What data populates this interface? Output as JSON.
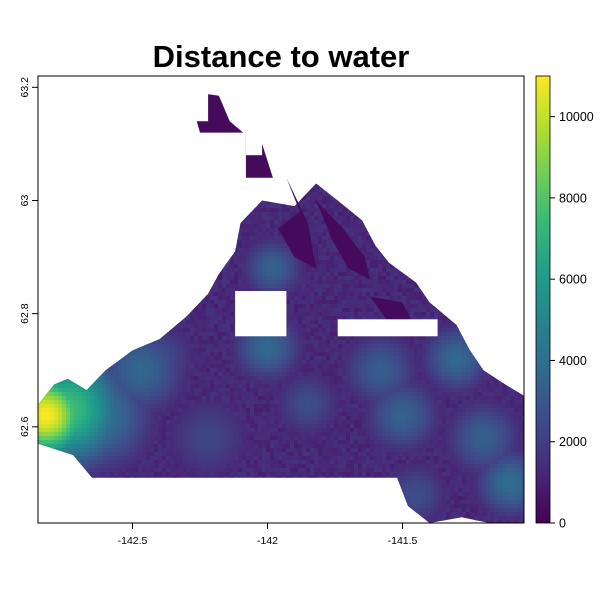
{
  "chart_data": {
    "type": "heatmap",
    "title": "Distance to water",
    "xlabel": "",
    "ylabel": "",
    "xlim": [
      -142.85,
      -141.05
    ],
    "ylim": [
      62.43,
      63.22
    ],
    "x_ticks": [
      {
        "value": -142.5,
        "label": "-142.5"
      },
      {
        "value": -142.0,
        "label": "-142"
      },
      {
        "value": -141.5,
        "label": "-141.5"
      }
    ],
    "y_ticks": [
      {
        "value": 62.6,
        "label": "62.6"
      },
      {
        "value": 62.8,
        "label": "62.8"
      },
      {
        "value": 63.0,
        "label": "63"
      },
      {
        "value": 63.2,
        "label": "63.2"
      }
    ],
    "legend": {
      "position": "right",
      "min": 0,
      "max": 11000,
      "ticks": [
        {
          "value": 0,
          "label": "0"
        },
        {
          "value": 2000,
          "label": "2000"
        },
        {
          "value": 4000,
          "label": "4000"
        },
        {
          "value": 6000,
          "label": "6000"
        },
        {
          "value": 8000,
          "label": "8000"
        },
        {
          "value": 10000,
          "label": "10000"
        }
      ]
    },
    "colormap": "viridis",
    "colors": [
      "#440154",
      "#482878",
      "#3e4989",
      "#31688e",
      "#26828e",
      "#1f9e89",
      "#35b779",
      "#6ece58",
      "#b5de2b",
      "#fde725"
    ],
    "grid": false,
    "region_outline": [
      [
        -142.85,
        62.64
      ],
      [
        -142.79,
        62.675
      ],
      [
        -142.74,
        62.685
      ],
      [
        -142.67,
        62.665
      ],
      [
        -142.6,
        62.7
      ],
      [
        -142.5,
        62.735
      ],
      [
        -142.4,
        62.755
      ],
      [
        -142.3,
        62.795
      ],
      [
        -142.22,
        62.835
      ],
      [
        -142.18,
        62.87
      ],
      [
        -142.12,
        62.91
      ],
      [
        -142.1,
        62.96
      ],
      [
        -142.02,
        63.0
      ],
      [
        -141.9,
        62.99
      ],
      [
        -141.82,
        63.03
      ],
      [
        -141.74,
        63.0
      ],
      [
        -141.65,
        62.965
      ],
      [
        -141.6,
        62.92
      ],
      [
        -141.55,
        62.89
      ],
      [
        -141.45,
        62.855
      ],
      [
        -141.4,
        62.82
      ],
      [
        -141.3,
        62.78
      ],
      [
        -141.25,
        62.735
      ],
      [
        -141.2,
        62.7
      ],
      [
        -141.12,
        62.675
      ],
      [
        -141.05,
        62.655
      ],
      [
        -141.05,
        62.43
      ],
      [
        -141.18,
        62.43
      ],
      [
        -141.28,
        62.44
      ],
      [
        -141.4,
        62.43
      ],
      [
        -141.48,
        62.46
      ],
      [
        -141.52,
        62.51
      ],
      [
        -142.65,
        62.51
      ],
      [
        -142.72,
        62.55
      ],
      [
        -142.85,
        62.57
      ]
    ],
    "north_patches": [
      [
        [
          -142.28,
          63.17
        ],
        [
          -142.25,
          63.19
        ],
        [
          -142.18,
          63.185
        ],
        [
          -142.14,
          63.14
        ],
        [
          -142.09,
          63.12
        ],
        [
          -142.25,
          63.12
        ]
      ],
      [
        [
          -142.08,
          63.12
        ],
        [
          -142.02,
          63.1
        ],
        [
          -141.98,
          63.04
        ],
        [
          -142.08,
          63.04
        ]
      ],
      [
        [
          -141.93,
          63.04
        ],
        [
          -141.88,
          62.98
        ],
        [
          -141.96,
          62.95
        ],
        [
          -141.9,
          62.9
        ],
        [
          -141.82,
          62.88
        ],
        [
          -141.85,
          62.96
        ]
      ],
      [
        [
          -141.82,
          63.0
        ],
        [
          -141.72,
          62.95
        ],
        [
          -141.64,
          62.9
        ],
        [
          -141.62,
          62.86
        ],
        [
          -141.7,
          62.88
        ],
        [
          -141.76,
          62.93
        ]
      ],
      [
        [
          -141.62,
          62.83
        ],
        [
          -141.5,
          62.82
        ],
        [
          -141.46,
          62.78
        ],
        [
          -141.56,
          62.79
        ]
      ]
    ],
    "nodata_blocks": [
      {
        "x": [
          -142.12,
          -141.93
        ],
        "y": [
          62.76,
          62.84
        ]
      },
      {
        "x": [
          -141.74,
          -141.37
        ],
        "y": [
          62.76,
          62.79
        ]
      },
      {
        "x": [
          -142.3,
          -142.22
        ],
        "y": [
          63.14,
          63.2
        ]
      },
      {
        "x": [
          -142.08,
          -142.02
        ],
        "y": [
          63.08,
          63.12
        ]
      }
    ],
    "hotspots": [
      {
        "x": -142.82,
        "y": 62.62,
        "value": 11000,
        "spread": 0.055
      },
      {
        "x": -142.74,
        "y": 62.63,
        "value": 7600,
        "spread": 0.07
      },
      {
        "x": -142.63,
        "y": 62.62,
        "value": 4300,
        "spread": 0.07
      },
      {
        "x": -142.47,
        "y": 62.7,
        "value": 3600,
        "spread": 0.06
      },
      {
        "x": -142.4,
        "y": 62.72,
        "value": 2600,
        "spread": 0.05
      },
      {
        "x": -142.0,
        "y": 62.74,
        "value": 3700,
        "spread": 0.045
      },
      {
        "x": -141.98,
        "y": 62.88,
        "value": 3400,
        "spread": 0.04
      },
      {
        "x": -141.58,
        "y": 62.7,
        "value": 3200,
        "spread": 0.05
      },
      {
        "x": -141.5,
        "y": 62.62,
        "value": 3400,
        "spread": 0.05
      },
      {
        "x": -141.3,
        "y": 62.72,
        "value": 3700,
        "spread": 0.045
      },
      {
        "x": -141.2,
        "y": 62.58,
        "value": 3300,
        "spread": 0.05
      },
      {
        "x": -141.1,
        "y": 62.5,
        "value": 3900,
        "spread": 0.045
      },
      {
        "x": -141.45,
        "y": 62.48,
        "value": 2600,
        "spread": 0.045
      },
      {
        "x": -142.22,
        "y": 62.58,
        "value": 2300,
        "spread": 0.06
      },
      {
        "x": -141.85,
        "y": 62.64,
        "value": 2600,
        "spread": 0.045
      }
    ]
  }
}
